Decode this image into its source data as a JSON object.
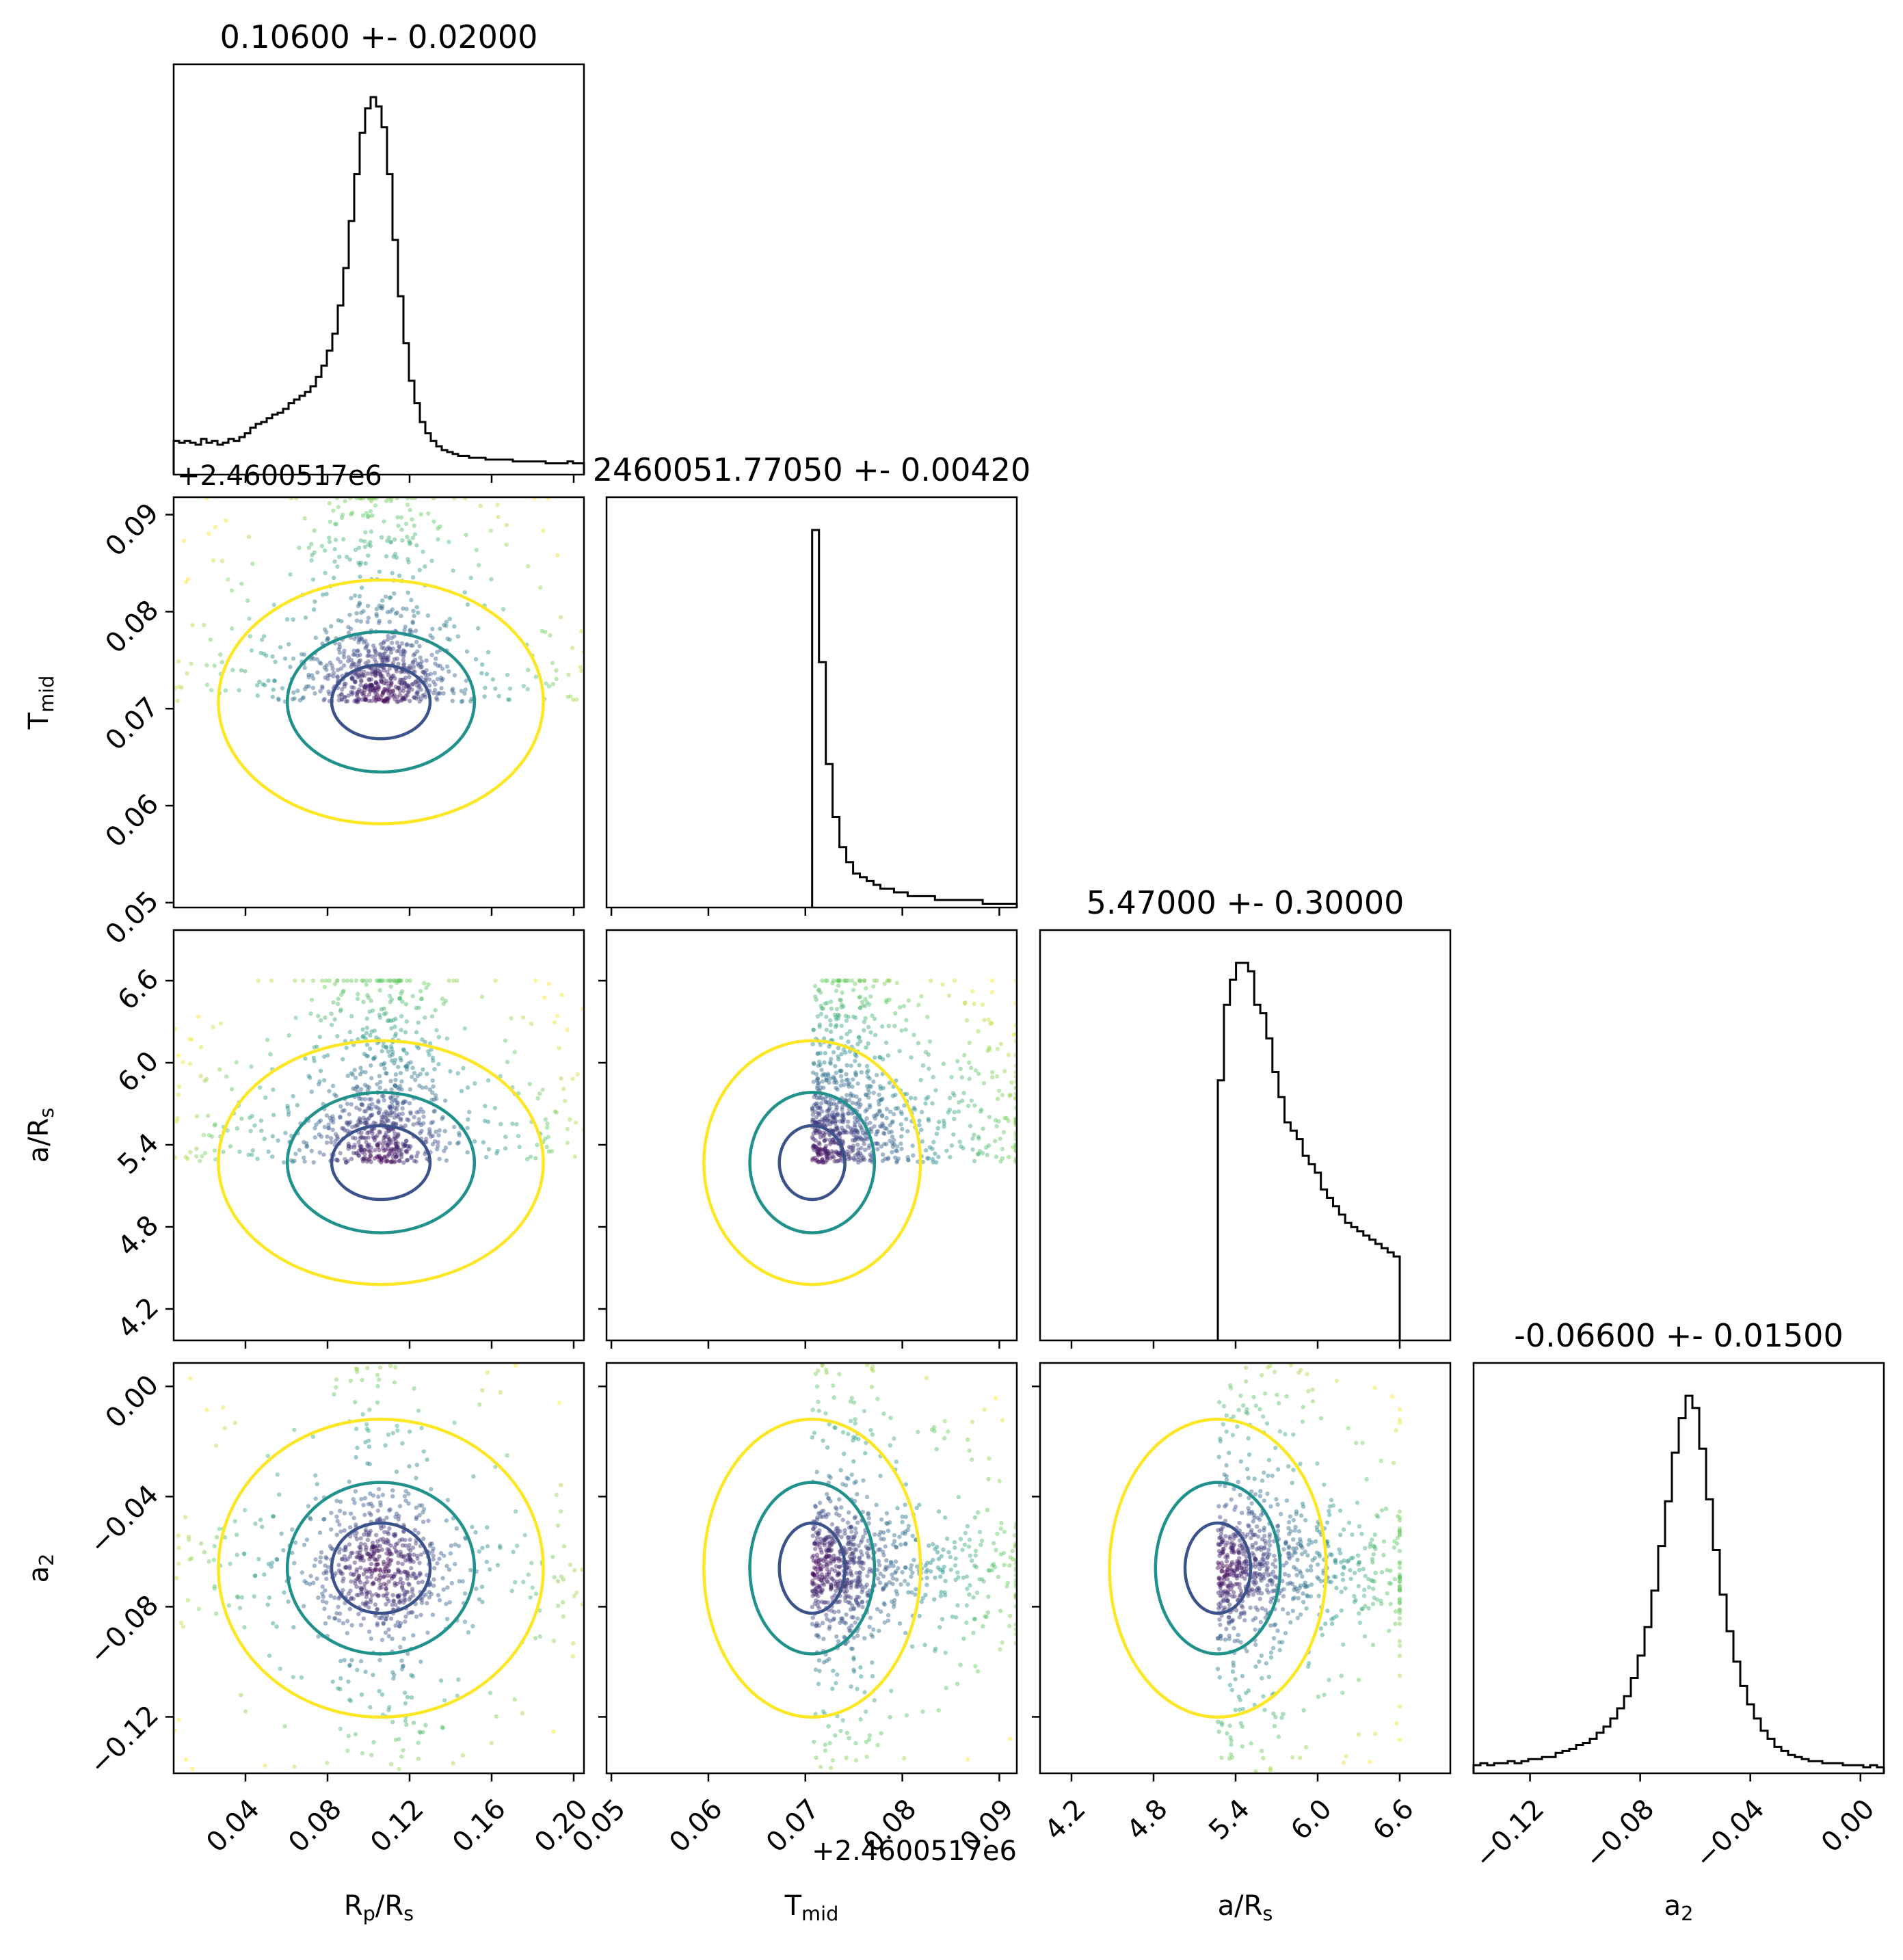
{
  "chart_data": {
    "type": "scatter",
    "kind": "corner-plot",
    "parameters": [
      {
        "key": "rp",
        "label_main": "R",
        "label_sub": "p",
        "label_main2": "/R",
        "label_sub2": "s",
        "range": [
          0.005,
          0.205
        ],
        "ticks": [
          0.04,
          0.08,
          0.12,
          0.16,
          0.2
        ],
        "tick_labels": [
          "0.04",
          "0.08",
          "0.12",
          "0.16",
          "0.20"
        ],
        "title": "0.10600 +- 0.02000",
        "hist_counts": [
          18,
          17,
          18,
          17,
          16,
          19,
          17,
          18,
          16,
          17,
          19,
          18,
          20,
          22,
          25,
          27,
          28,
          30,
          32,
          33,
          35,
          38,
          40,
          42,
          44,
          47,
          52,
          58,
          66,
          75,
          90,
          110,
          135,
          160,
          182,
          195,
          201,
          196,
          185,
          160,
          125,
          95,
          70,
          50,
          38,
          28,
          22,
          18,
          15,
          13,
          12,
          11,
          10,
          10,
          9,
          9,
          9,
          8,
          8,
          8,
          8,
          8,
          7,
          7,
          7,
          7,
          7,
          7,
          6,
          6,
          6,
          6,
          7,
          6,
          6
        ]
      },
      {
        "key": "tmid",
        "label_main": "T",
        "label_sub": "mid",
        "range": [
          0.0495,
          0.0918
        ],
        "ticks": [
          0.05,
          0.06,
          0.07,
          0.08,
          0.09
        ],
        "tick_labels": [
          "0.05",
          "0.06",
          "0.07",
          "0.08",
          "0.09"
        ],
        "offset_label": "+2.4600517e6",
        "title": "2460051.77050 +- 0.00420",
        "hist_edges": [
          0.0707,
          0.0918
        ],
        "hist_counts": [
          100,
          65,
          38,
          24,
          16,
          12,
          9,
          8,
          7,
          6,
          5,
          5,
          4,
          4,
          3,
          3,
          3,
          3,
          2,
          2,
          2,
          2,
          2,
          2,
          2,
          1,
          1,
          1,
          1,
          1
        ]
      },
      {
        "key": "ars",
        "label_main": "a/R",
        "label_sub": "s",
        "range": [
          3.97,
          6.97
        ],
        "ticks": [
          4.2,
          4.8,
          5.4,
          6.0,
          6.6
        ],
        "tick_labels": [
          "4.2",
          "4.8",
          "5.4",
          "6.0",
          "6.6"
        ],
        "title": "5.47000 +- 0.30000",
        "hist_edges": [
          5.27,
          6.6
        ],
        "hist_counts": [
          62,
          80,
          86,
          90,
          90,
          88,
          80,
          78,
          72,
          64,
          58,
          52,
          50,
          48,
          44,
          42,
          40,
          36,
          34,
          32,
          30,
          28,
          27,
          26,
          25,
          24,
          23,
          22,
          21,
          20
        ]
      },
      {
        "key": "a2",
        "label_main": "a",
        "label_sub": "2",
        "range": [
          -0.1405,
          0.0085
        ],
        "ticks": [
          -0.12,
          -0.08,
          -0.04,
          0.0
        ],
        "tick_labels": [
          "−0.12",
          "−0.08",
          "−0.04",
          "0.00"
        ],
        "title": "-0.06600 +- 0.01500",
        "hist_counts": [
          4,
          5,
          4,
          5,
          5,
          6,
          5,
          6,
          7,
          7,
          8,
          8,
          10,
          11,
          12,
          14,
          15,
          17,
          20,
          23,
          27,
          32,
          38,
          47,
          58,
          72,
          90,
          112,
          134,
          158,
          175,
          186,
          180,
          160,
          135,
          110,
          88,
          70,
          55,
          43,
          34,
          27,
          21,
          17,
          13,
          11,
          9,
          8,
          7,
          6,
          6,
          5,
          5,
          5,
          4,
          4,
          4,
          3,
          4,
          3
        ]
      }
    ],
    "contour_levels": [
      "0.5",
      "1.0",
      "1.5"
    ],
    "point_colors": "viridis",
    "grid": false,
    "legend": "none"
  },
  "colors": {
    "contour_inner": "#3b528b",
    "contour_middle": "#21918c",
    "contour_outer": "#fde725",
    "viridis": [
      "#440154",
      "#3b528b",
      "#21918c",
      "#5ec962",
      "#fde725"
    ]
  }
}
